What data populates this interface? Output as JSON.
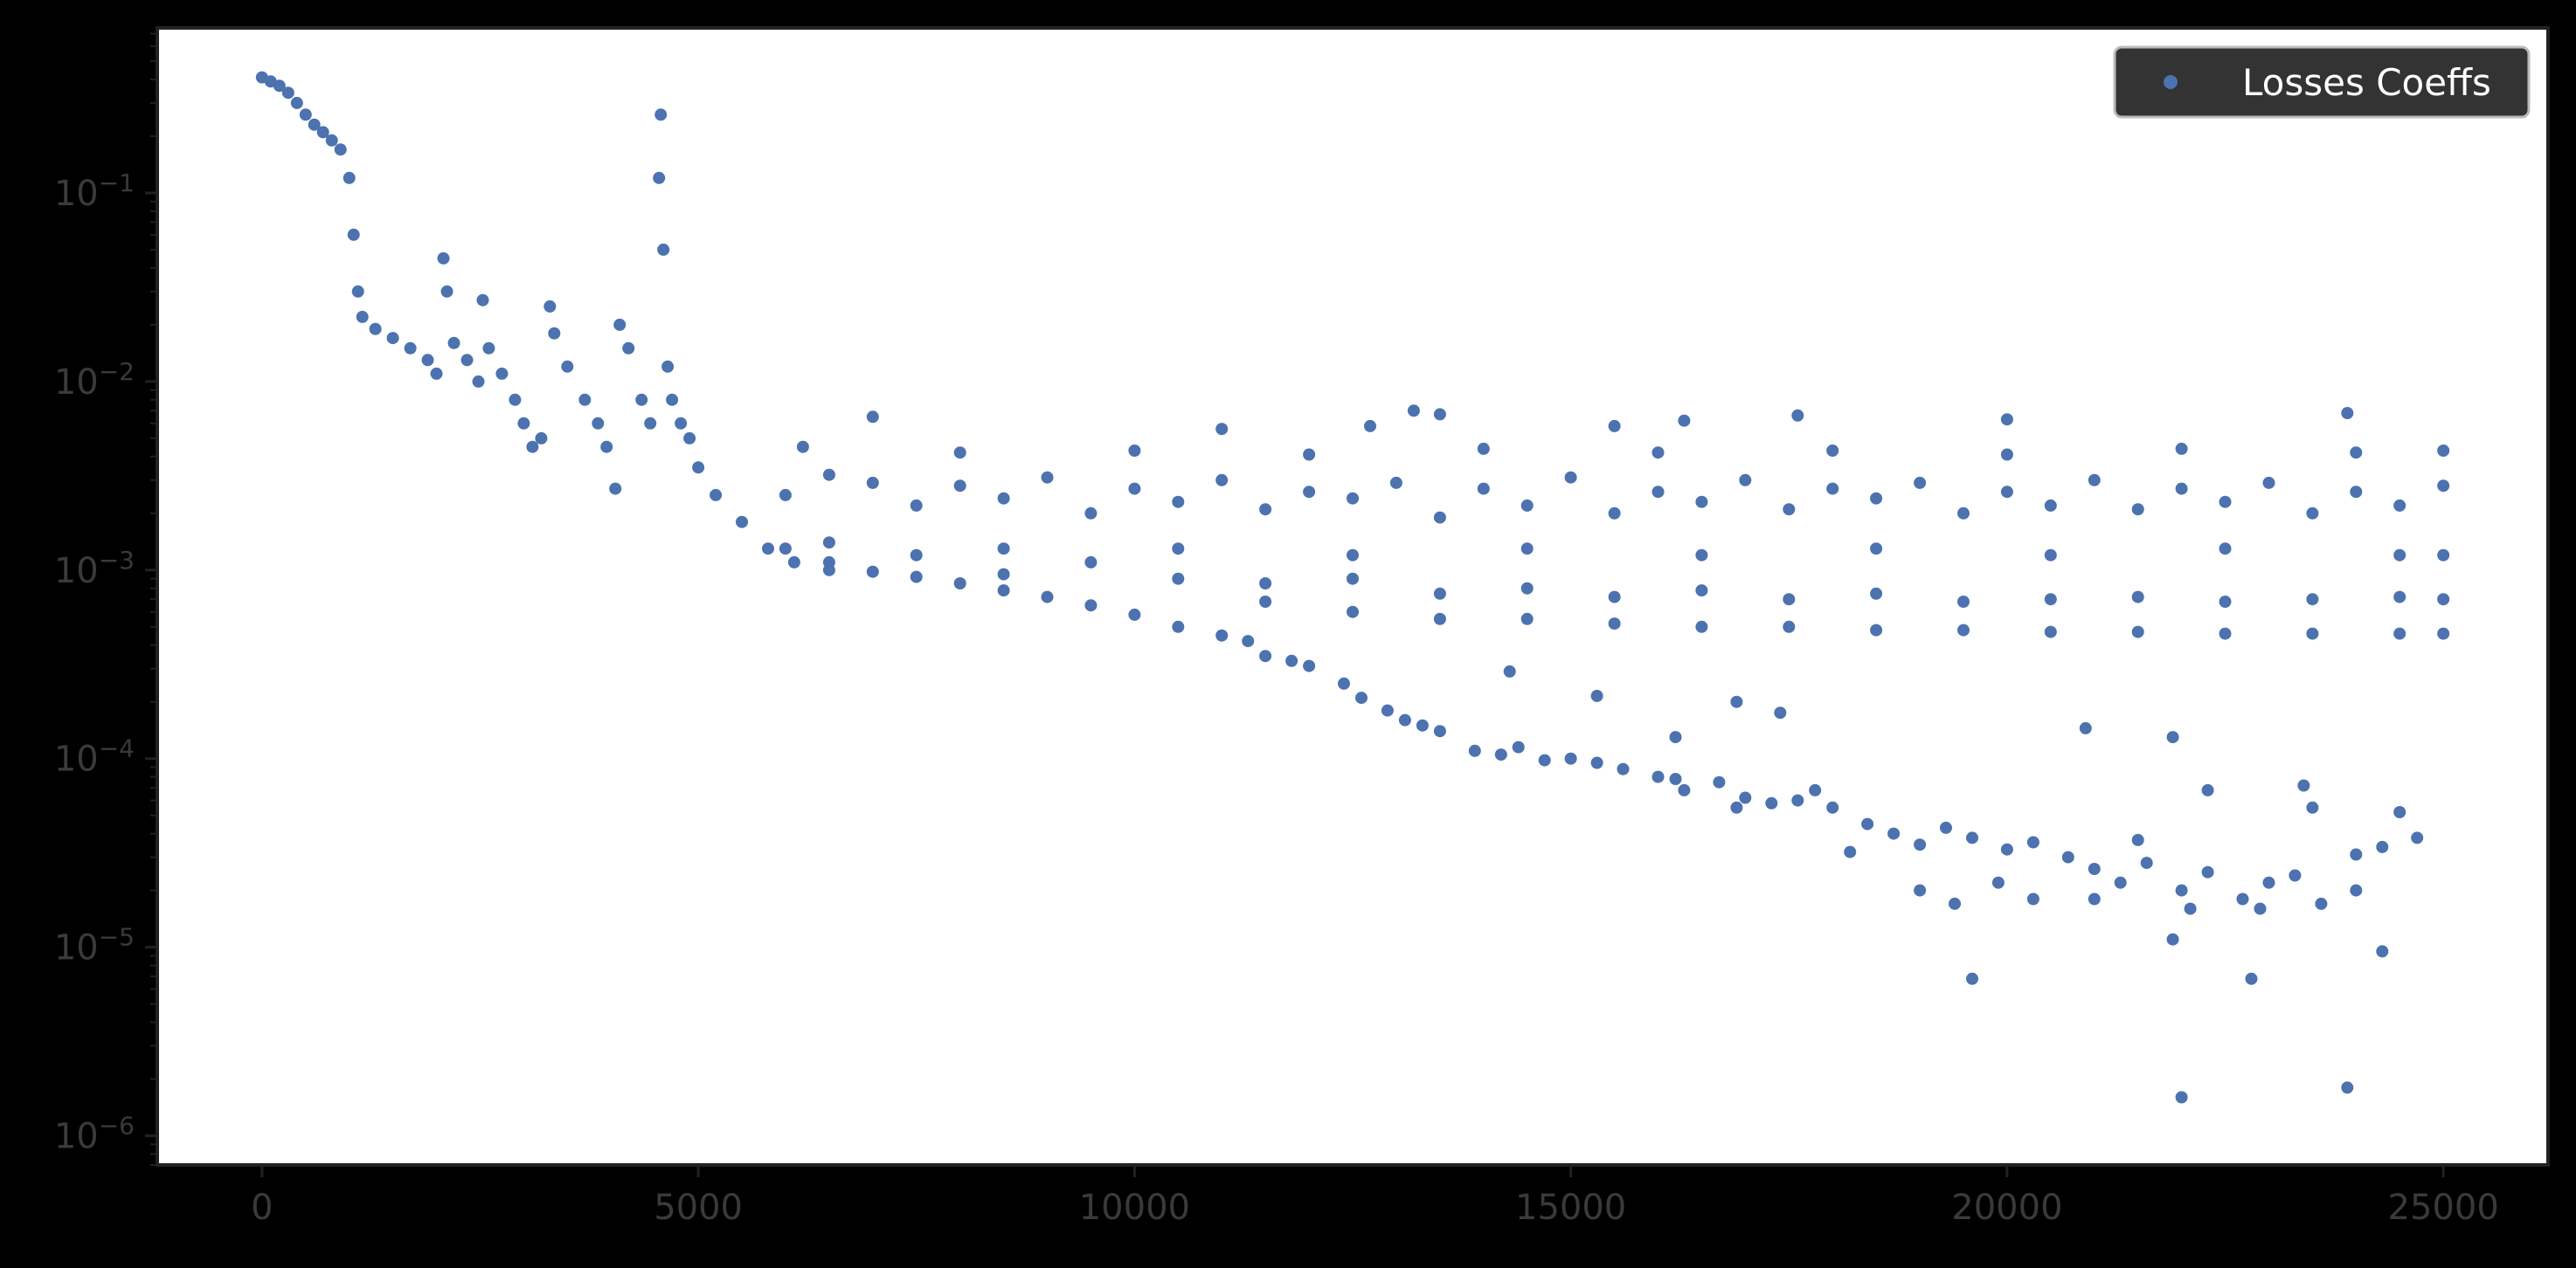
{
  "chart_data": {
    "type": "scatter",
    "title": "",
    "xlabel": "",
    "ylabel": "",
    "xlim": [
      -1200,
      26200
    ],
    "ylim": [
      7e-07,
      0.75
    ],
    "yscale": "log",
    "grid": false,
    "legend": {
      "placement": "top-right",
      "entries": [
        "Losses Coeffs"
      ]
    },
    "x_ticks": [
      {
        "value": 0,
        "label": "0"
      },
      {
        "value": 5000,
        "label": "5000"
      },
      {
        "value": 10000,
        "label": "10000"
      },
      {
        "value": 15000,
        "label": "15000"
      },
      {
        "value": 20000,
        "label": "20000"
      },
      {
        "value": 25000,
        "label": "25000"
      }
    ],
    "y_ticks": [
      {
        "value": 1e-06,
        "base": "10",
        "exp": "−6"
      },
      {
        "value": 1e-05,
        "base": "10",
        "exp": "−5"
      },
      {
        "value": 0.0001,
        "base": "10",
        "exp": "−4"
      },
      {
        "value": 0.001,
        "base": "10",
        "exp": "−3"
      },
      {
        "value": 0.01,
        "base": "10",
        "exp": "−2"
      },
      {
        "value": 0.1,
        "base": "10",
        "exp": "−1"
      }
    ],
    "series": [
      {
        "name": "Losses Coeffs",
        "color": "#4c72b0",
        "marker": "circle",
        "points": [
          [
            0,
            0.41
          ],
          [
            100,
            0.39
          ],
          [
            200,
            0.37
          ],
          [
            300,
            0.34
          ],
          [
            400,
            0.3
          ],
          [
            500,
            0.26
          ],
          [
            600,
            0.23
          ],
          [
            700,
            0.21
          ],
          [
            800,
            0.19
          ],
          [
            900,
            0.17
          ],
          [
            1000,
            0.12
          ],
          [
            1050,
            0.06
          ],
          [
            1100,
            0.03
          ],
          [
            1150,
            0.022
          ],
          [
            1300,
            0.019
          ],
          [
            1500,
            0.017
          ],
          [
            1700,
            0.015
          ],
          [
            1900,
            0.013
          ],
          [
            2000,
            0.011
          ],
          [
            2080,
            0.045
          ],
          [
            2120,
            0.03
          ],
          [
            2200,
            0.016
          ],
          [
            2350,
            0.013
          ],
          [
            2480,
            0.01
          ],
          [
            2530,
            0.027
          ],
          [
            2600,
            0.015
          ],
          [
            2750,
            0.011
          ],
          [
            2900,
            0.008
          ],
          [
            3000,
            0.006
          ],
          [
            3100,
            0.0045
          ],
          [
            3200,
            0.005
          ],
          [
            3300,
            0.025
          ],
          [
            3350,
            0.018
          ],
          [
            3500,
            0.012
          ],
          [
            3700,
            0.008
          ],
          [
            3850,
            0.006
          ],
          [
            3950,
            0.0045
          ],
          [
            4050,
            0.0027
          ],
          [
            4100,
            0.02
          ],
          [
            4200,
            0.015
          ],
          [
            4350,
            0.008
          ],
          [
            4450,
            0.006
          ],
          [
            4550,
            0.12
          ],
          [
            4570,
            0.26
          ],
          [
            4600,
            0.05
          ],
          [
            4650,
            0.012
          ],
          [
            4700,
            0.008
          ],
          [
            4800,
            0.006
          ],
          [
            4900,
            0.005
          ],
          [
            5000,
            0.0035
          ],
          [
            5200,
            0.0025
          ],
          [
            5500,
            0.0018
          ],
          [
            6000,
            0.0025
          ],
          [
            6500,
            0.0032
          ],
          [
            7000,
            0.0029
          ],
          [
            7500,
            0.0022
          ],
          [
            8000,
            0.0028
          ],
          [
            8500,
            0.0024
          ],
          [
            9000,
            0.0031
          ],
          [
            9500,
            0.002
          ],
          [
            10000,
            0.0027
          ],
          [
            10500,
            0.0023
          ],
          [
            11000,
            0.003
          ],
          [
            11500,
            0.0021
          ],
          [
            12000,
            0.0026
          ],
          [
            12500,
            0.0024
          ],
          [
            13000,
            0.0029
          ],
          [
            13500,
            0.0019
          ],
          [
            14000,
            0.0027
          ],
          [
            14500,
            0.0022
          ],
          [
            15000,
            0.0031
          ],
          [
            15500,
            0.002
          ],
          [
            16000,
            0.0026
          ],
          [
            16500,
            0.0023
          ],
          [
            17000,
            0.003
          ],
          [
            17500,
            0.0021
          ],
          [
            18000,
            0.0027
          ],
          [
            18500,
            0.0024
          ],
          [
            19000,
            0.0029
          ],
          [
            19500,
            0.002
          ],
          [
            20000,
            0.0026
          ],
          [
            20500,
            0.0022
          ],
          [
            21000,
            0.003
          ],
          [
            21500,
            0.0021
          ],
          [
            22000,
            0.0027
          ],
          [
            22500,
            0.0023
          ],
          [
            23000,
            0.0029
          ],
          [
            23500,
            0.002
          ],
          [
            24000,
            0.0026
          ],
          [
            24500,
            0.0022
          ],
          [
            25000,
            0.0028
          ],
          [
            6200,
            0.0045
          ],
          [
            8000,
            0.0042
          ],
          [
            10000,
            0.0043
          ],
          [
            12000,
            0.0041
          ],
          [
            14000,
            0.0044
          ],
          [
            16000,
            0.0042
          ],
          [
            18000,
            0.0043
          ],
          [
            20000,
            0.0041
          ],
          [
            22000,
            0.0044
          ],
          [
            24000,
            0.0042
          ],
          [
            25000,
            0.0043
          ],
          [
            6500,
            0.0014
          ],
          [
            8500,
            0.0013
          ],
          [
            10500,
            0.0013
          ],
          [
            12500,
            0.0012
          ],
          [
            14500,
            0.0013
          ],
          [
            16500,
            0.0012
          ],
          [
            18500,
            0.0013
          ],
          [
            20500,
            0.0012
          ],
          [
            22500,
            0.0013
          ],
          [
            24500,
            0.0012
          ],
          [
            25000,
            0.0012
          ],
          [
            7000,
            0.0065
          ],
          [
            11000,
            0.0056
          ],
          [
            12700,
            0.0058
          ],
          [
            13200,
            0.007
          ],
          [
            13500,
            0.0067
          ],
          [
            15500,
            0.0058
          ],
          [
            16300,
            0.0062
          ],
          [
            17600,
            0.0066
          ],
          [
            20000,
            0.0063
          ],
          [
            23900,
            0.0068
          ],
          [
            6000,
            0.0013
          ],
          [
            6500,
            0.0011
          ],
          [
            7500,
            0.0012
          ],
          [
            8500,
            0.00095
          ],
          [
            9500,
            0.0011
          ],
          [
            10500,
            0.0009
          ],
          [
            11500,
            0.00085
          ],
          [
            12500,
            0.0009
          ],
          [
            13500,
            0.00075
          ],
          [
            14500,
            0.0008
          ],
          [
            15500,
            0.00072
          ],
          [
            16500,
            0.00078
          ],
          [
            17500,
            0.0007
          ],
          [
            18500,
            0.00075
          ],
          [
            19500,
            0.00068
          ],
          [
            20500,
            0.0007
          ],
          [
            21500,
            0.00072
          ],
          [
            22500,
            0.00068
          ],
          [
            23500,
            0.0007
          ],
          [
            24500,
            0.00072
          ],
          [
            25000,
            0.0007
          ],
          [
            11500,
            0.00068
          ],
          [
            12500,
            0.0006
          ],
          [
            13500,
            0.00055
          ],
          [
            14500,
            0.00055
          ],
          [
            15500,
            0.00052
          ],
          [
            16500,
            0.0005
          ],
          [
            17500,
            0.0005
          ],
          [
            18500,
            0.00048
          ],
          [
            19500,
            0.00048
          ],
          [
            20500,
            0.00047
          ],
          [
            21500,
            0.00047
          ],
          [
            22500,
            0.00046
          ],
          [
            23500,
            0.00046
          ],
          [
            24500,
            0.00046
          ],
          [
            25000,
            0.00046
          ],
          [
            5800,
            0.0013
          ],
          [
            6100,
            0.0011
          ],
          [
            6500,
            0.001
          ],
          [
            7000,
            0.00098
          ],
          [
            7500,
            0.00092
          ],
          [
            8000,
            0.00085
          ],
          [
            8500,
            0.00078
          ],
          [
            9000,
            0.00072
          ],
          [
            9500,
            0.00065
          ],
          [
            10000,
            0.00058
          ],
          [
            10500,
            0.0005
          ],
          [
            11000,
            0.00045
          ],
          [
            11300,
            0.00042
          ],
          [
            11500,
            0.00035
          ],
          [
            11800,
            0.00033
          ],
          [
            12000,
            0.00031
          ],
          [
            12400,
            0.00025
          ],
          [
            12600,
            0.00021
          ],
          [
            12900,
            0.00018
          ],
          [
            13100,
            0.00016
          ],
          [
            13300,
            0.00015
          ],
          [
            13500,
            0.00014
          ],
          [
            13900,
            0.00011
          ],
          [
            14200,
            0.000105
          ],
          [
            14400,
            0.000115
          ],
          [
            14700,
            9.8e-05
          ],
          [
            15000,
            0.0001
          ],
          [
            15300,
            9.5e-05
          ],
          [
            15600,
            8.8e-05
          ],
          [
            16000,
            8e-05
          ],
          [
            16300,
            6.8e-05
          ],
          [
            16700,
            7.5e-05
          ],
          [
            17000,
            6.2e-05
          ],
          [
            17300,
            5.8e-05
          ],
          [
            17600,
            6e-05
          ],
          [
            18000,
            5.5e-05
          ],
          [
            18400,
            4.5e-05
          ],
          [
            18700,
            4e-05
          ],
          [
            19000,
            3.5e-05
          ],
          [
            19300,
            4.3e-05
          ],
          [
            19600,
            3.8e-05
          ],
          [
            20000,
            3.3e-05
          ],
          [
            20300,
            3.6e-05
          ],
          [
            20700,
            3e-05
          ],
          [
            21000,
            2.6e-05
          ],
          [
            21300,
            2.2e-05
          ],
          [
            21600,
            2.8e-05
          ],
          [
            22000,
            2e-05
          ],
          [
            22300,
            2.5e-05
          ],
          [
            22700,
            1.8e-05
          ],
          [
            23000,
            2.2e-05
          ],
          [
            23300,
            2.4e-05
          ],
          [
            23600,
            1.7e-05
          ],
          [
            24000,
            2e-05
          ],
          [
            24300,
            3.4e-05
          ],
          [
            24700,
            3.8e-05
          ],
          [
            14300,
            0.00029
          ],
          [
            15300,
            0.000215
          ],
          [
            16200,
            0.00013
          ],
          [
            16900,
            0.0002
          ],
          [
            17400,
            0.000175
          ],
          [
            20900,
            0.000145
          ],
          [
            21900,
            0.00013
          ],
          [
            22300,
            6.8e-05
          ],
          [
            23400,
            7.2e-05
          ],
          [
            24500,
            5.2e-05
          ],
          [
            16200,
            7.8e-05
          ],
          [
            16900,
            5.5e-05
          ],
          [
            17800,
            6.8e-05
          ],
          [
            18200,
            3.2e-05
          ],
          [
            19000,
            2e-05
          ],
          [
            19400,
            1.7e-05
          ],
          [
            19900,
            2.2e-05
          ],
          [
            20300,
            1.8e-05
          ],
          [
            21000,
            1.8e-05
          ],
          [
            21500,
            3.7e-05
          ],
          [
            22100,
            1.6e-05
          ],
          [
            22900,
            1.6e-05
          ],
          [
            23500,
            5.5e-05
          ],
          [
            24000,
            3.1e-05
          ],
          [
            19600,
            6.8e-06
          ],
          [
            21900,
            1.1e-05
          ],
          [
            22800,
            6.8e-06
          ],
          [
            24300,
            9.5e-06
          ],
          [
            22000,
            1.6e-06
          ],
          [
            23900,
            1.8e-06
          ]
        ]
      }
    ]
  }
}
